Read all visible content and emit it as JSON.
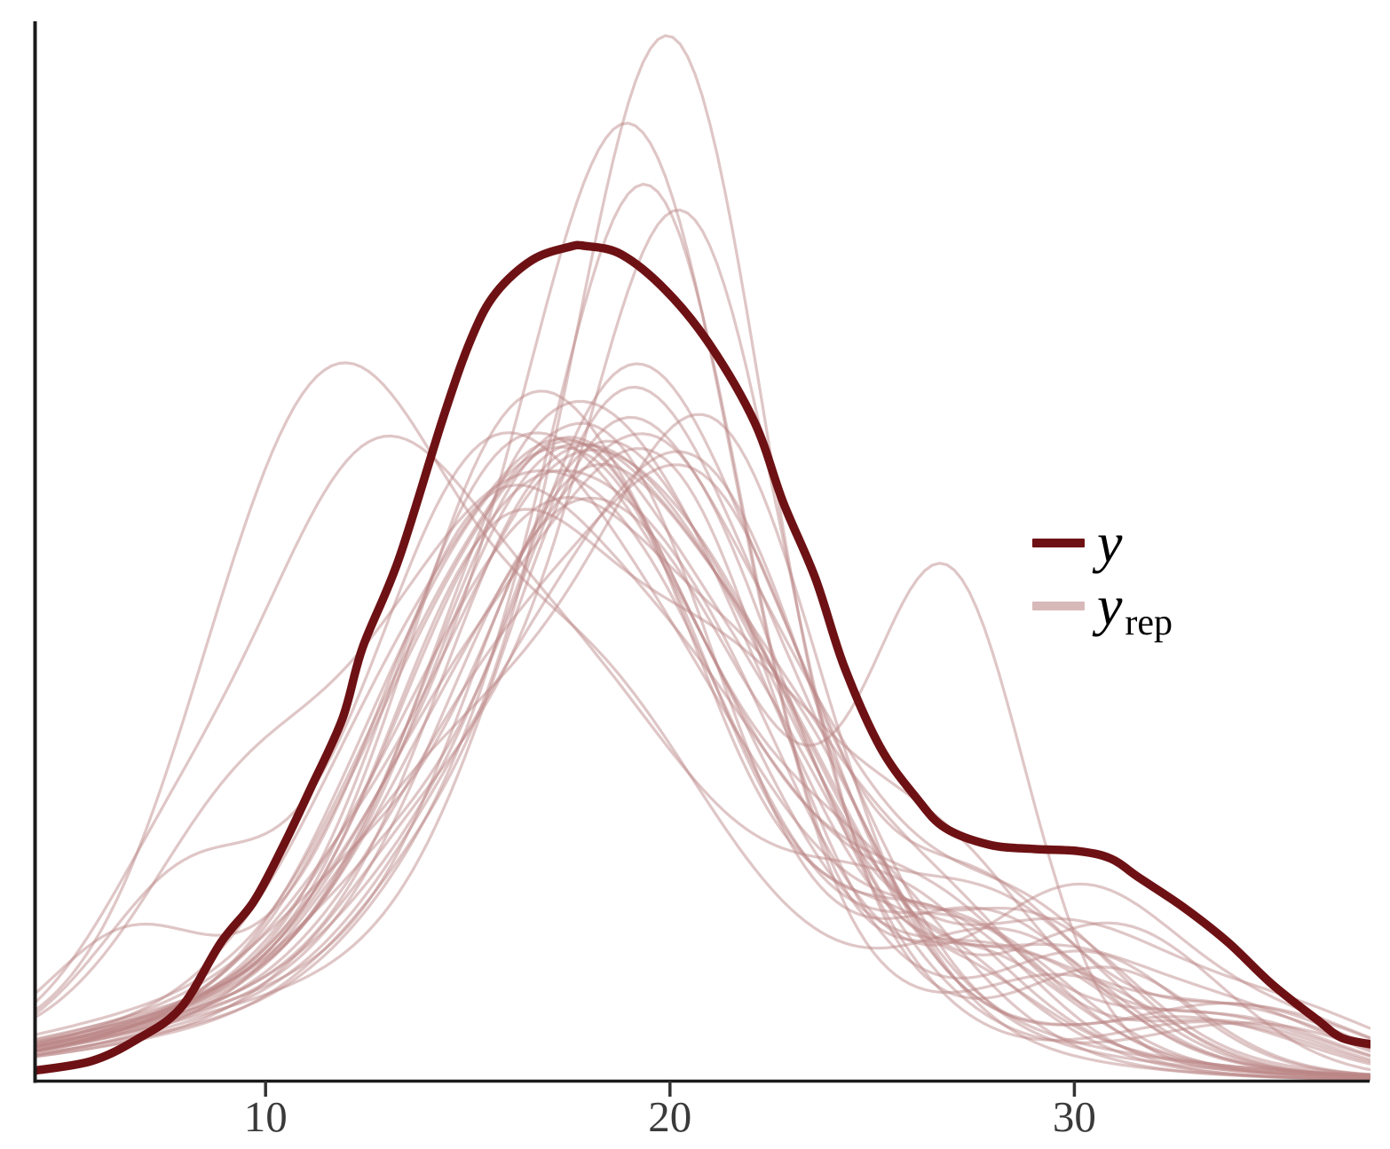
{
  "page": {
    "background": "#ffffff"
  },
  "colors": {
    "y_line": "#6e1114",
    "yrep_line": "rgba(187,133,133,0.47)",
    "yrep_legend_swatch": "#d8b9b9",
    "axis": "#1a1a1a",
    "tick": "#333333",
    "tick_label": "#3a3a3a",
    "legend_text": "#000000"
  },
  "legend": {
    "y_label": "y",
    "yrep_base": "y",
    "yrep_sub": "rep"
  },
  "chart_data": {
    "type": "line",
    "subtype": "density-overlay-ppc",
    "title": "",
    "xlabel": "",
    "ylabel": "",
    "grid": false,
    "legend_position": "right-middle",
    "xlim": [
      4.3,
      37.3
    ],
    "ylim": [
      0,
      1
    ],
    "x_ticks": [
      10,
      20,
      30
    ],
    "series": [
      {
        "name": "y",
        "role": "observed-density",
        "points": [
          [
            4.3,
            0.01
          ],
          [
            5.7,
            0.019
          ],
          [
            6.8,
            0.039
          ],
          [
            7.9,
            0.069
          ],
          [
            8.9,
            0.131
          ],
          [
            9.7,
            0.169
          ],
          [
            10.4,
            0.219
          ],
          [
            11.1,
            0.275
          ],
          [
            11.9,
            0.342
          ],
          [
            12.4,
            0.409
          ],
          [
            13.3,
            0.493
          ],
          [
            14.4,
            0.627
          ],
          [
            15.1,
            0.702
          ],
          [
            15.7,
            0.744
          ],
          [
            16.6,
            0.775
          ],
          [
            17.5,
            0.787
          ],
          [
            17.9,
            0.788
          ],
          [
            18.8,
            0.78
          ],
          [
            19.9,
            0.746
          ],
          [
            21.0,
            0.694
          ],
          [
            22.1,
            0.621
          ],
          [
            22.8,
            0.546
          ],
          [
            23.6,
            0.474
          ],
          [
            24.3,
            0.392
          ],
          [
            25.2,
            0.315
          ],
          [
            26.1,
            0.267
          ],
          [
            26.8,
            0.239
          ],
          [
            27.9,
            0.223
          ],
          [
            29.0,
            0.219
          ],
          [
            30.1,
            0.217
          ],
          [
            30.9,
            0.21
          ],
          [
            31.6,
            0.192
          ],
          [
            32.7,
            0.164
          ],
          [
            33.8,
            0.131
          ],
          [
            34.9,
            0.091
          ],
          [
            36.0,
            0.058
          ],
          [
            36.6,
            0.041
          ],
          [
            37.3,
            0.035
          ]
        ]
      },
      {
        "name": "y_rep",
        "role": "replicated-densities",
        "component_format": "[amplitude, mean, sd] gaussian mixture per curve, density normalized 0-1",
        "curves": [
          [
            [
              0.4,
              16.0,
              2.6
            ],
            [
              0.22,
              20.0,
              2.9
            ],
            [
              0.15,
              17.0,
              7.5
            ],
            [
              0.1,
              26.5,
              2.2
            ],
            [
              0.05,
              33.5,
              2.8
            ]
          ],
          [
            [
              0.44,
              18.5,
              2.7
            ],
            [
              0.2,
              14.0,
              2.4
            ],
            [
              0.14,
              16.5,
              8.0
            ],
            [
              0.11,
              28.0,
              2.4
            ]
          ],
          [
            [
              0.85,
              20.1,
              2.3
            ],
            [
              0.16,
              15.5,
              2.7
            ],
            [
              0.1,
              18.0,
              8.0
            ],
            [
              0.06,
              27.0,
              2.0
            ]
          ],
          [
            [
              0.42,
              17.0,
              2.9
            ],
            [
              0.24,
              22.0,
              2.7
            ],
            [
              0.13,
              16.0,
              7.0
            ],
            [
              0.09,
              29.5,
              2.3
            ],
            [
              0.06,
              34.0,
              2.6
            ]
          ],
          [
            [
              0.36,
              15.0,
              2.6
            ],
            [
              0.26,
              19.5,
              3.1
            ],
            [
              0.14,
              16.0,
              7.5
            ],
            [
              0.1,
              27.5,
              2.5
            ],
            [
              0.12,
              8.0,
              2.0
            ]
          ],
          [
            [
              0.75,
              19.2,
              2.5
            ],
            [
              0.18,
              14.5,
              2.8
            ],
            [
              0.11,
              17.0,
              8.0
            ],
            [
              0.07,
              30.0,
              2.2
            ]
          ],
          [
            [
              0.42,
              18.0,
              2.5
            ],
            [
              0.22,
              22.5,
              2.6
            ],
            [
              0.13,
              16.0,
              7.5
            ],
            [
              0.08,
              12.5,
              2.2
            ],
            [
              0.05,
              33.0,
              2.7
            ]
          ],
          [
            [
              0.36,
              16.5,
              2.7
            ],
            [
              0.28,
              20.5,
              2.9
            ],
            [
              0.14,
              17.0,
              8.0
            ],
            [
              0.07,
              29.0,
              2.1
            ]
          ],
          [
            [
              0.4,
              21.0,
              2.6
            ],
            [
              0.24,
              16.0,
              2.8
            ],
            [
              0.13,
              17.5,
              7.5
            ],
            [
              0.13,
              27.8,
              2.2
            ],
            [
              0.06,
              34.5,
              2.8
            ]
          ],
          [
            [
              0.44,
              17.8,
              2.9
            ],
            [
              0.16,
              13.0,
              2.4
            ],
            [
              0.14,
              16.0,
              7.0
            ],
            [
              0.14,
              24.5,
              2.6
            ]
          ],
          [
            [
              0.44,
              11.9,
              2.5
            ],
            [
              0.26,
              17.5,
              3.2
            ],
            [
              0.14,
              16.0,
              8.0
            ],
            [
              0.1,
              28.5,
              2.4
            ],
            [
              0.14,
              9.0,
              2.2
            ]
          ],
          [
            [
              0.7,
              20.4,
              2.4
            ],
            [
              0.18,
              15.0,
              2.7
            ],
            [
              0.1,
              18.0,
              8.0
            ],
            [
              0.08,
              31.0,
              2.1
            ]
          ],
          [
            [
              0.36,
              15.8,
              2.6
            ],
            [
              0.26,
              21.5,
              2.8
            ],
            [
              0.14,
              17.0,
              7.5
            ],
            [
              0.14,
              27.0,
              2.3
            ],
            [
              0.05,
              34.0,
              2.5
            ]
          ],
          [
            [
              0.44,
              19.8,
              2.7
            ],
            [
              0.2,
              14.8,
              2.5
            ],
            [
              0.13,
              17.0,
              8.0
            ],
            [
              0.09,
              30.5,
              2.2
            ]
          ],
          [
            [
              0.4,
              17.2,
              2.8
            ],
            [
              0.25,
              21.8,
              2.6
            ],
            [
              0.13,
              16.0,
              7.0
            ],
            [
              0.06,
              12.0,
              2.0
            ],
            [
              0.05,
              33.5,
              2.6
            ]
          ],
          [
            [
              0.35,
              17.0,
              2.8
            ],
            [
              0.2,
              21.0,
              2.6
            ],
            [
              0.12,
              17.0,
              7.5
            ],
            [
              0.42,
              26.9,
              1.9
            ]
          ],
          [
            [
              0.48,
              18.8,
              2.5
            ],
            [
              0.18,
              23.0,
              2.4
            ],
            [
              0.13,
              17.0,
              8.0
            ],
            [
              0.09,
              13.5,
              2.3
            ]
          ],
          [
            [
              0.36,
              15.5,
              2.6
            ],
            [
              0.28,
              19.8,
              2.9
            ],
            [
              0.13,
              16.5,
              7.5
            ],
            [
              0.08,
              28.2,
              2.3
            ],
            [
              0.06,
              34.0,
              2.7
            ]
          ],
          [
            [
              0.44,
              20.0,
              2.8
            ],
            [
              0.2,
              15.2,
              2.6
            ],
            [
              0.13,
              17.5,
              8.0
            ],
            [
              0.11,
              29.0,
              2.4
            ]
          ],
          [
            [
              0.39,
              17.6,
              2.6
            ],
            [
              0.24,
              22.3,
              2.7
            ],
            [
              0.13,
              16.5,
              7.0
            ],
            [
              0.09,
              27.2,
              2.1
            ],
            [
              0.05,
              33.8,
              2.5
            ]
          ],
          [
            [
              0.42,
              12.3,
              2.7
            ],
            [
              0.24,
              17.6,
              3.1
            ],
            [
              0.13,
              16.0,
              8.0
            ],
            [
              0.12,
              25.5,
              2.6
            ],
            [
              0.1,
              7.5,
              1.9
            ]
          ],
          [
            [
              0.52,
              19.0,
              2.6
            ],
            [
              0.17,
              23.5,
              2.3
            ],
            [
              0.13,
              17.0,
              7.5
            ],
            [
              0.07,
              14.0,
              2.2
            ]
          ],
          [
            [
              0.37,
              16.8,
              2.7
            ],
            [
              0.26,
              21.2,
              2.8
            ],
            [
              0.13,
              17.5,
              8.0
            ],
            [
              0.1,
              29.8,
              2.5
            ],
            [
              0.06,
              35.0,
              2.8
            ]
          ],
          [
            [
              0.42,
              18.2,
              3.0
            ],
            [
              0.18,
              13.8,
              2.5
            ],
            [
              0.13,
              16.5,
              7.0
            ],
            [
              0.11,
              26.8,
              2.3
            ]
          ],
          [
            [
              0.35,
              15.3,
              2.6
            ],
            [
              0.25,
              20.2,
              3.0
            ],
            [
              0.13,
              16.0,
              8.0
            ],
            [
              0.13,
              28.0,
              2.7
            ],
            [
              0.08,
              6.5,
              1.8
            ]
          ],
          [
            [
              0.45,
              21.3,
              2.5
            ],
            [
              0.2,
              16.5,
              2.9
            ],
            [
              0.13,
              18.0,
              7.5
            ],
            [
              0.06,
              12.8,
              2.1
            ],
            [
              0.06,
              34.2,
              2.6
            ]
          ],
          [
            [
              0.38,
              17.4,
              2.8
            ],
            [
              0.23,
              22.8,
              2.5
            ],
            [
              0.13,
              16.5,
              7.0
            ],
            [
              0.09,
              13.2,
              2.4
            ]
          ],
          [
            [
              0.7,
              19.6,
              2.3
            ],
            [
              0.15,
              15.6,
              2.6
            ],
            [
              0.1,
              17.5,
              8.0
            ],
            [
              0.08,
              27.6,
              2.2
            ]
          ],
          [
            [
              0.36,
              16.0,
              2.8
            ],
            [
              0.26,
              20.6,
              2.7
            ],
            [
              0.13,
              17.0,
              7.5
            ],
            [
              0.15,
              30.2,
              2.4
            ],
            [
              0.05,
              35.2,
              2.6
            ]
          ],
          [
            [
              0.4,
              18.4,
              2.6
            ],
            [
              0.22,
              14.2,
              2.6
            ],
            [
              0.13,
              16.5,
              7.0
            ],
            [
              0.1,
              25.8,
              2.6
            ]
          ],
          [
            [
              0.32,
              15.0,
              2.9
            ],
            [
              0.28,
              19.4,
              2.8
            ],
            [
              0.13,
              16.0,
              8.0
            ],
            [
              0.1,
              27.4,
              2.2
            ],
            [
              0.16,
              9.3,
              2.3
            ]
          ],
          [
            [
              0.42,
              20.9,
              2.7
            ],
            [
              0.19,
              16.2,
              2.7
            ],
            [
              0.13,
              18.0,
              7.5
            ],
            [
              0.12,
              31.2,
              2.5
            ]
          ],
          [
            [
              0.38,
              17.0,
              2.5
            ],
            [
              0.25,
              21.6,
              2.9
            ],
            [
              0.13,
              16.5,
              7.0
            ],
            [
              0.07,
              13.6,
              2.2
            ],
            [
              0.05,
              34.5,
              2.7
            ]
          ],
          [
            [
              0.46,
              18.6,
              2.7
            ],
            [
              0.18,
              23.2,
              2.5
            ],
            [
              0.13,
              17.5,
              7.5
            ],
            [
              0.12,
              28.8,
              2.4
            ]
          ]
        ]
      }
    ]
  }
}
